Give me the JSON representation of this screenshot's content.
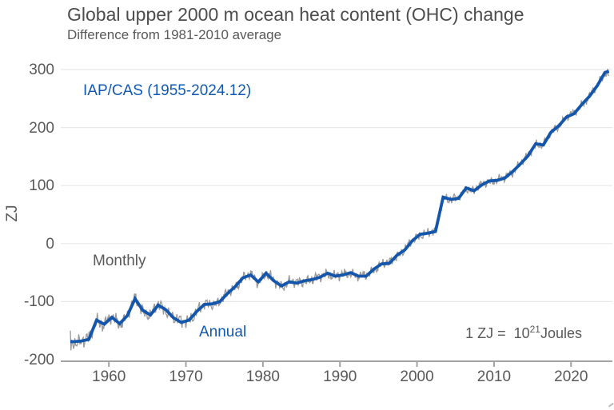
{
  "header": {
    "title": "Global upper 2000 m ocean heat content (OHC) change",
    "subtitle": "Difference from 1981-2010 average"
  },
  "labels": {
    "dataset": "IAP/CAS (1955-2024.12)",
    "monthly": "Monthly",
    "annual": "Annual",
    "eq_prefix": "1 ZJ =  10",
    "eq_sup": "21",
    "eq_suffix": "Joules"
  },
  "colors": {
    "annual_line": "#1356ab",
    "monthly_line": "#999999",
    "accent_text": "#1159b3",
    "text": "#595959",
    "title_text": "#4d4d4d",
    "gridline": "#e8e8e8",
    "axis": "#a3a3a3"
  },
  "chart_data": {
    "type": "line",
    "title": "Global upper 2000 m ocean heat content (OHC) change",
    "subtitle": "Difference from 1981-2010 average",
    "xlabel": "",
    "ylabel": "ZJ",
    "x_range": [
      1955,
      2025
    ],
    "y_range": [
      -200,
      300
    ],
    "grid": "horizontal-only",
    "legend_position": "none (inline text labels)",
    "yticks": [
      300,
      200,
      100,
      0,
      -100,
      -200
    ],
    "xticks": [
      1960,
      1970,
      1980,
      1990,
      2000,
      2010,
      2020
    ],
    "gridline_values": [
      300,
      200,
      100,
      0,
      -100
    ],
    "annual_x_offset": 0.4,
    "years": [
      1955,
      1956,
      1957,
      1958,
      1959,
      1960,
      1961,
      1962,
      1963,
      1964,
      1965,
      1966,
      1967,
      1968,
      1969,
      1970,
      1971,
      1972,
      1973,
      1974,
      1975,
      1976,
      1977,
      1978,
      1979,
      1980,
      1981,
      1982,
      1983,
      1984,
      1985,
      1986,
      1987,
      1988,
      1989,
      1990,
      1991,
      1992,
      1993,
      1994,
      1995,
      1996,
      1997,
      1998,
      1999,
      2000,
      2001,
      2002,
      2003,
      2004,
      2005,
      2006,
      2007,
      2008,
      2009,
      2010,
      2011,
      2012,
      2013,
      2014,
      2015,
      2016,
      2017,
      2018,
      2019,
      2020,
      2021,
      2022,
      2023,
      2024
    ],
    "series": [
      {
        "name": "Annual",
        "color": "#1356ab",
        "values": [
          -169,
          -168,
          -165,
          -132,
          -139,
          -127,
          -138,
          -124,
          -95,
          -115,
          -123,
          -106,
          -114,
          -128,
          -136,
          -132,
          -117,
          -105,
          -104,
          -100,
          -86,
          -74,
          -59,
          -54,
          -66,
          -51,
          -64,
          -73,
          -66,
          -68,
          -64,
          -62,
          -58,
          -51,
          -56,
          -54,
          -50,
          -56,
          -56,
          -44,
          -35,
          -34,
          -20,
          -11,
          5,
          16,
          18,
          21,
          80,
          76,
          78,
          96,
          91,
          101,
          108,
          109,
          113,
          124,
          137,
          151,
          172,
          170,
          192,
          203,
          218,
          224,
          240,
          254,
          272,
          295
        ]
      },
      {
        "name": "Monthly",
        "color": "#999999",
        "derivation": "annual series plus short-term fluctuations of roughly +/-8 to +/-14 ZJ",
        "start_spike_values": [
          -150,
          -184
        ],
        "end_values": [
          291,
          289
        ],
        "noise_amp_schedule": [
          [
            1960,
            13
          ],
          [
            1972,
            12
          ],
          [
            1990,
            10
          ],
          [
            2005,
            9
          ],
          [
            2026,
            8
          ]
        ],
        "noise_components": [
          [
            12.9,
            0.0,
            0.5
          ],
          [
            5.3,
            1.7,
            0.3
          ],
          [
            23.7,
            0.6,
            0.32
          ],
          [
            2.1,
            3.1,
            0.22
          ],
          [
            41.3,
            2.2,
            0.18
          ]
        ]
      }
    ],
    "series_end": {
      "x": 2024.92,
      "value": 297
    }
  }
}
